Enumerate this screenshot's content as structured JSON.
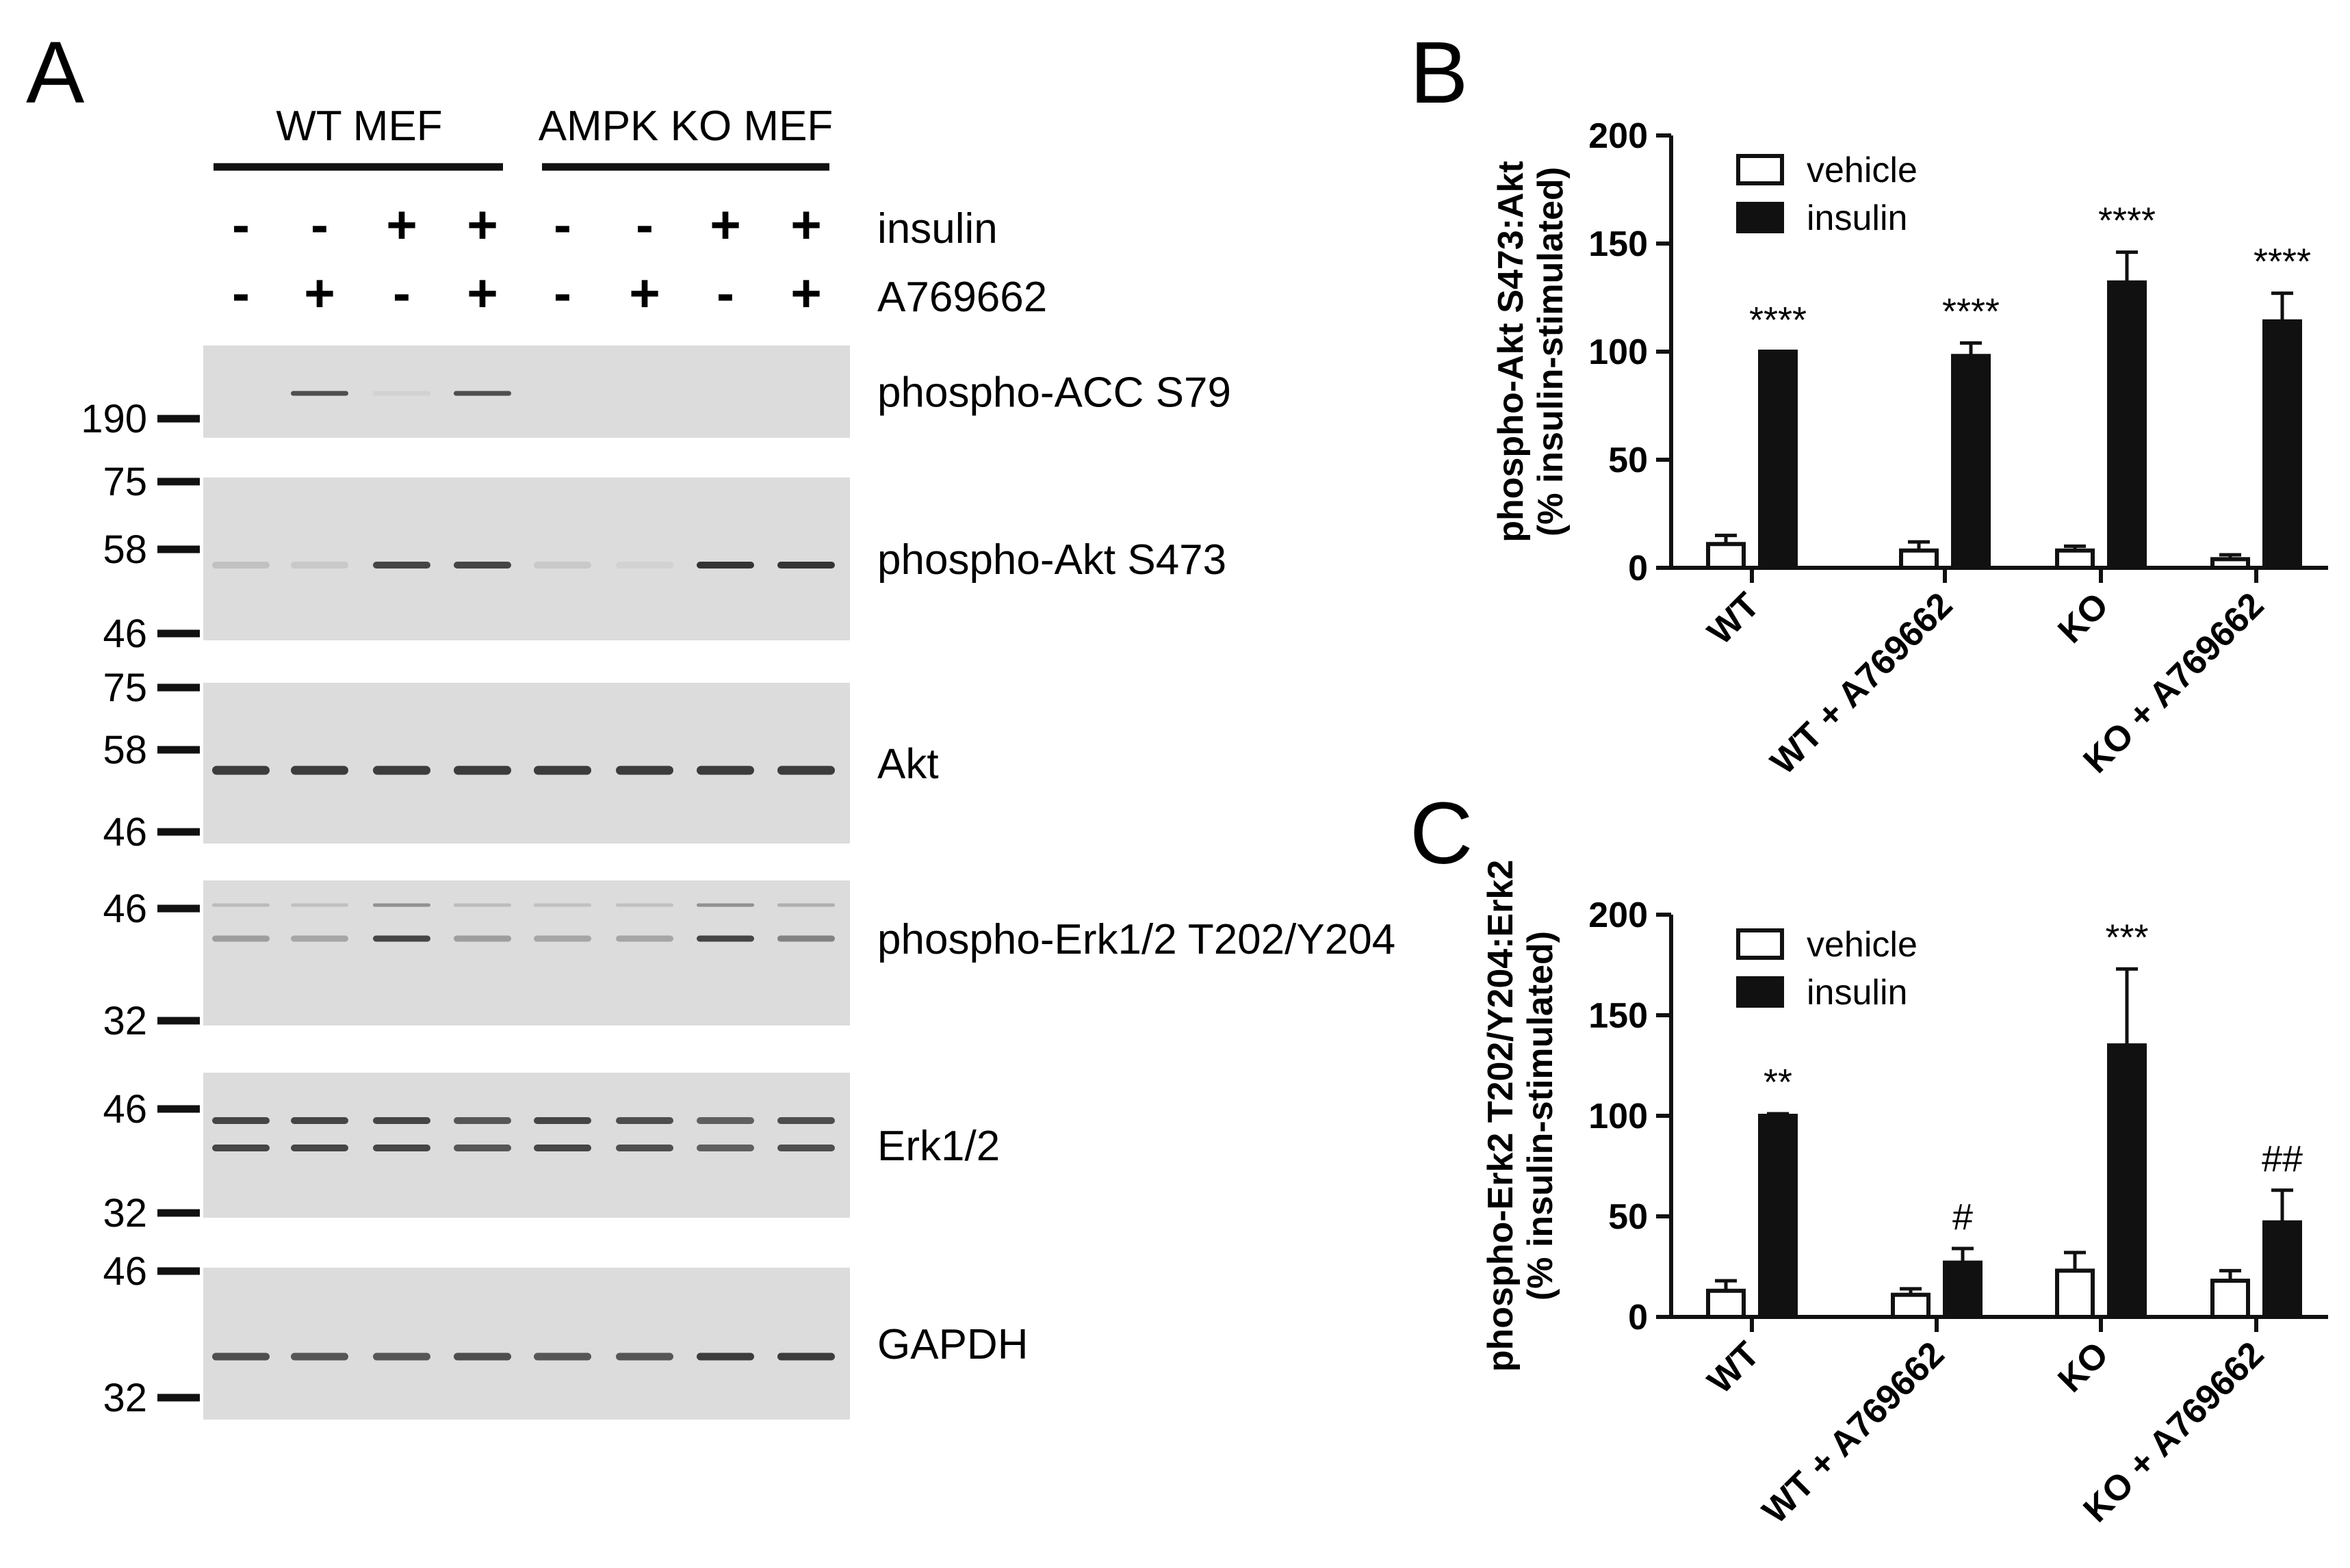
{
  "colors": {
    "ink": "#111111",
    "blot_bg": "#dcdcdc",
    "band": "#2a2a2a",
    "vehicle": "#ffffff",
    "insulin": "#111111"
  },
  "panel_a": {
    "letter": "A",
    "groups": [
      "WT MEF",
      "AMPK KO MEF"
    ],
    "treatments": [
      {
        "label": "insulin",
        "signs": [
          "-",
          "-",
          "+",
          "+",
          "-",
          "-",
          "+",
          "+"
        ]
      },
      {
        "label": "A769662",
        "signs": [
          "-",
          "+",
          "-",
          "+",
          "-",
          "+",
          "-",
          "+"
        ]
      }
    ],
    "blots": [
      {
        "label": "phospho-ACC S79",
        "markers": [
          "190"
        ],
        "band_intensity": [
          0,
          0.8,
          0.05,
          0.8,
          0,
          0,
          0,
          0
        ]
      },
      {
        "label": "phospho-Akt S473",
        "markers": [
          "75",
          "58",
          "46"
        ],
        "band_intensity": [
          0.15,
          0.1,
          0.85,
          0.85,
          0.1,
          0.05,
          0.95,
          0.95
        ]
      },
      {
        "label": "Akt",
        "markers": [
          "75",
          "58",
          "46"
        ],
        "band_intensity": [
          0.9,
          0.9,
          0.9,
          0.9,
          0.9,
          0.9,
          0.9,
          0.9
        ]
      },
      {
        "label": "phospho-Erk1/2 T202/Y204",
        "markers": [
          "46",
          "32"
        ],
        "band_intensity": [
          0.35,
          0.3,
          0.85,
          0.35,
          0.3,
          0.3,
          0.85,
          0.5
        ]
      },
      {
        "label": "Erk1/2",
        "markers": [
          "46",
          "32"
        ],
        "band_intensity": [
          0.85,
          0.85,
          0.85,
          0.75,
          0.85,
          0.8,
          0.7,
          0.8
        ]
      },
      {
        "label": "GAPDH",
        "markers": [
          "46",
          "32"
        ],
        "band_intensity": [
          0.8,
          0.75,
          0.75,
          0.8,
          0.75,
          0.75,
          0.9,
          0.9
        ]
      }
    ]
  },
  "chart_data": [
    {
      "panel": "B",
      "type": "bar",
      "ylabel": "phospho-Akt S473:Akt",
      "ylabel2": "(% insulin-stimulated)",
      "ylim": [
        0,
        200
      ],
      "yticks": [
        "0",
        "50",
        "100",
        "150",
        "200"
      ],
      "categories": [
        "WT",
        "WT + A769662",
        "KO",
        "KO + A769662"
      ],
      "series": [
        {
          "name": "vehicle",
          "values": [
            11,
            8,
            8,
            4
          ],
          "errors": [
            4,
            4,
            2,
            2
          ]
        },
        {
          "name": "insulin",
          "values": [
            100,
            98,
            132,
            114
          ],
          "errors": [
            0,
            6,
            14,
            13
          ]
        }
      ],
      "annotations": [
        "****",
        "****",
        "****",
        "****"
      ],
      "legend_position": "top-left"
    },
    {
      "panel": "C",
      "type": "bar",
      "ylabel": "phospho-Erk2 T202/Y204:Erk2",
      "ylabel2": "(% insulin-stimulated)",
      "ylim": [
        0,
        200
      ],
      "yticks": [
        "0",
        "50",
        "100",
        "150",
        "200"
      ],
      "categories": [
        "WT",
        "WT + A769662",
        "KO",
        "KO + A769662"
      ],
      "series": [
        {
          "name": "vehicle",
          "values": [
            13,
            11,
            23,
            18
          ],
          "errors": [
            5,
            3,
            9,
            5
          ]
        },
        {
          "name": "insulin",
          "values": [
            100,
            27,
            135,
            47
          ],
          "errors": [
            1,
            7,
            38,
            16
          ]
        }
      ],
      "annotations": [
        "**",
        "#",
        "***",
        "##"
      ],
      "legend_position": "top-left"
    }
  ]
}
